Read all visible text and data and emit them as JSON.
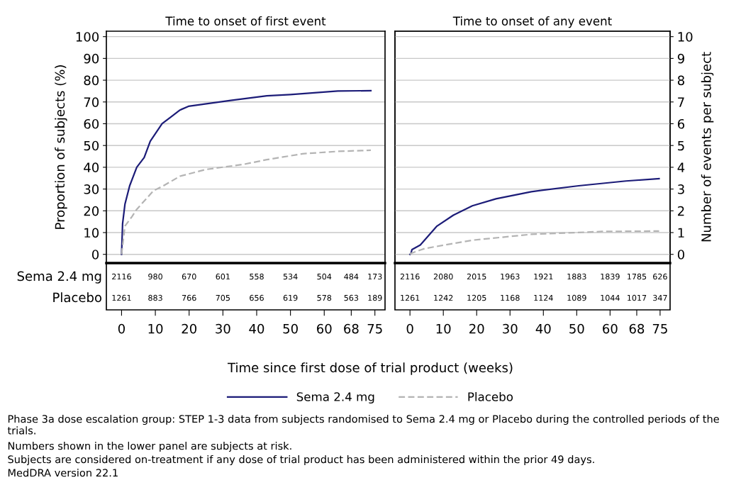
{
  "chart_data": [
    {
      "type": "line",
      "title": "Time to onset of first event",
      "ylabel": "Proportion of subjects (%)",
      "xlabel": "Time since first dose of trial product (weeks)",
      "xlim": [
        -4.5,
        78
      ],
      "xticks": [
        0,
        10,
        20,
        30,
        40,
        50,
        60,
        68,
        75
      ],
      "ylim": [
        -4,
        102.5
      ],
      "yticks": [
        0,
        10,
        20,
        30,
        40,
        50,
        60,
        70,
        80,
        90,
        100
      ],
      "grid": "y",
      "legend": "bottom",
      "series": [
        {
          "name": "Sema 2.4 mg",
          "color": "#1c1c78",
          "line_style": "solid",
          "x": [
            0,
            0.3,
            1,
            2.4,
            4.5,
            6.7,
            8.5,
            12,
            14.5,
            17.3,
            19.8,
            32.3,
            43,
            50,
            64,
            73.8
          ],
          "values": [
            0,
            14,
            23,
            31.5,
            40,
            44.5,
            52,
            60,
            63,
            66.3,
            68,
            70.7,
            72.8,
            73.4,
            75,
            75.2
          ]
        },
        {
          "name": "Placebo",
          "color": "#b4b4b4",
          "line_style": "dashed",
          "x": [
            0,
            1,
            3.1,
            4.5,
            9.5,
            12.4,
            17.3,
            25,
            36,
            43,
            53.6,
            64,
            73.8
          ],
          "values": [
            0,
            13,
            17.4,
            20.7,
            29.3,
            31.5,
            35.9,
            39,
            41.3,
            43.5,
            46.2,
            47.3,
            47.8
          ]
        }
      ],
      "annotations": [
        "Sema 2.4 mg",
        "2116",
        "980",
        "670",
        "601",
        "558",
        "534",
        "504",
        "484",
        "173",
        "Placebo",
        "1261",
        "883",
        "766",
        "705",
        "656",
        "619",
        "578",
        "563",
        "189",
        "Phase 3a dose escalation group: STEP 1-3 data from subjects randomised to Sema 2.4 mg or Placebo during the controlled periods of the trials.",
        "Numbers shown in the lower panel are subjects at risk.",
        "Subjects are considered on-treatment if any dose of trial product has been administered within the prior 49 days.",
        "MedDRA version 22.1"
      ]
    },
    {
      "type": "line",
      "title": "Time to onset of any event",
      "y2label": "Number of events per subject",
      "xlim": [
        -4.5,
        78
      ],
      "xticks": [
        0,
        10,
        20,
        30,
        40,
        50,
        60,
        68,
        75
      ],
      "y2lim": [
        -0.4,
        10.25
      ],
      "y2ticks": [
        0,
        1,
        2,
        3,
        4,
        5,
        6,
        7,
        8,
        9,
        10
      ],
      "grid": "y",
      "series": [
        {
          "color": "#1c1c78",
          "line_style": "solid",
          "axis": "y2",
          "x": [
            0,
            0.3,
            0.6,
            3.1,
            8.1,
            13,
            18.7,
            25.8,
            36.4,
            50.6,
            64.8,
            74.7
          ],
          "values": [
            0,
            0.05,
            0.22,
            0.43,
            1.3,
            1.8,
            2.23,
            2.55,
            2.88,
            3.15,
            3.37,
            3.48
          ]
        },
        {
          "color": "#b4b4b4",
          "line_style": "dashed",
          "axis": "y2",
          "x": [
            0,
            0.3,
            4.5,
            18.7,
            36.4,
            57.6,
            74.7
          ],
          "values": [
            0,
            0.05,
            0.27,
            0.65,
            0.92,
            1.05,
            1.07
          ]
        }
      ],
      "annotations": [
        "2116",
        "2080",
        "2015",
        "1963",
        "1921",
        "1883",
        "1839",
        "1785",
        "626",
        "1261",
        "1242",
        "1205",
        "1168",
        "1124",
        "1089",
        "1044",
        "1017",
        "347"
      ]
    }
  ]
}
